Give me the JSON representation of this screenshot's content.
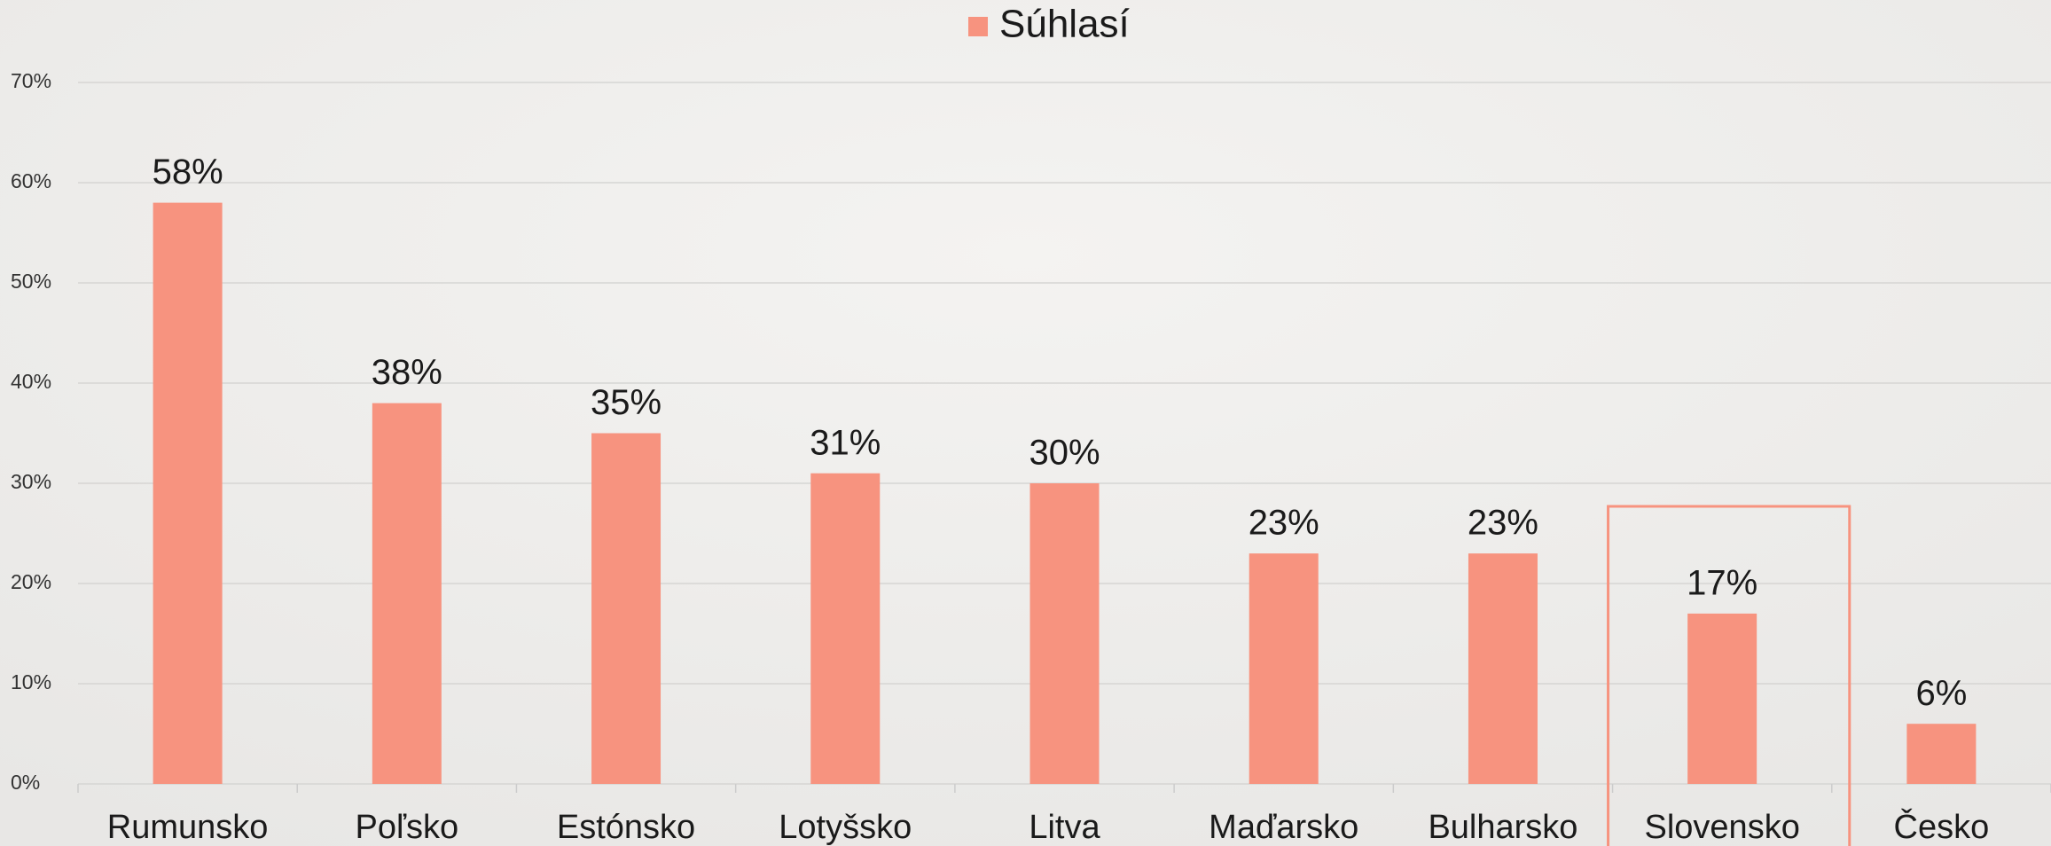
{
  "chart_data": {
    "type": "bar",
    "legend": "Súhlasí",
    "categories": [
      "Rumunsko",
      "Poľsko",
      "Estónsko",
      "Lotyšsko",
      "Litva",
      "Maďarsko",
      "Bulharsko",
      "Slovensko",
      "Česko"
    ],
    "values": [
      58,
      38,
      35,
      31,
      30,
      23,
      23,
      17,
      6
    ],
    "value_labels": [
      "58%",
      "38%",
      "35%",
      "31%",
      "30%",
      "23%",
      "23%",
      "17%",
      "6%"
    ],
    "color": "#f7937f",
    "ylim": [
      0,
      70
    ],
    "yticks": [
      {
        "value": 0,
        "label": "0%"
      },
      {
        "value": 10,
        "label": "10%"
      },
      {
        "value": 20,
        "label": "20%"
      },
      {
        "value": 30,
        "label": "30%"
      },
      {
        "value": 40,
        "label": "40%"
      },
      {
        "value": 50,
        "label": "50%"
      },
      {
        "value": 60,
        "label": "60%"
      },
      {
        "value": 70,
        "label": "70%"
      }
    ],
    "grid": true
  }
}
